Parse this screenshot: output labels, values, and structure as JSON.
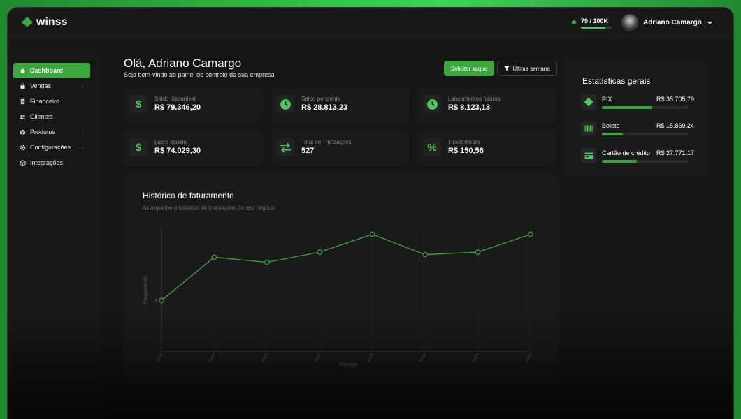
{
  "brand": {
    "name": "winss"
  },
  "credits": {
    "current": "79",
    "max": "100K",
    "label": "79  /  100K",
    "progress": 0.79
  },
  "user": {
    "name": "Adriano Camargo"
  },
  "sidebar": {
    "items": [
      {
        "label": "Dashboard",
        "icon": "home-icon",
        "active": true,
        "expandable": false
      },
      {
        "label": "Vendas",
        "icon": "bag-icon",
        "active": false,
        "expandable": true
      },
      {
        "label": "Financeiro",
        "icon": "document-icon",
        "active": false,
        "expandable": true
      },
      {
        "label": "Clientes",
        "icon": "users-icon",
        "active": false,
        "expandable": false
      },
      {
        "label": "Produtos",
        "icon": "box-icon",
        "active": false,
        "expandable": true
      },
      {
        "label": "Configurações",
        "icon": "gear-icon",
        "active": false,
        "expandable": true
      },
      {
        "label": "Integrações",
        "icon": "cube-icon",
        "active": false,
        "expandable": false
      }
    ]
  },
  "header": {
    "greeting": "Olá, Adriano Camargo",
    "subtitle": "Seja bem-vindo ao painel de controle da sua empresa",
    "withdraw_label": "Solicitar saque",
    "filter_label": "Última semana"
  },
  "cards": [
    {
      "label": "Saldo disponível",
      "value": "R$ 79.346,20",
      "icon": "dollar-icon"
    },
    {
      "label": "Saldo pendente",
      "value": "R$ 28.813,23",
      "icon": "clock-icon"
    },
    {
      "label": "Lançamentos futuros",
      "value": "R$ 8.123,13",
      "icon": "clock-icon"
    },
    {
      "label": "Lucro líquido",
      "value": "R$ 74.029,30",
      "icon": "dollar-icon"
    },
    {
      "label": "Total de Transações",
      "value": "527",
      "icon": "transfer-icon"
    },
    {
      "label": "Ticket médio",
      "value": "R$ 150,56",
      "icon": "percent-icon"
    }
  ],
  "stats": {
    "title": "Estatísticas gerais",
    "items": [
      {
        "name": "PIX",
        "amount": "R$ 35.705,79",
        "share": 0.58,
        "icon": "pix-icon"
      },
      {
        "name": "Boleto",
        "amount": "R$ 15.869,24",
        "share": 0.24,
        "icon": "barcode-icon"
      },
      {
        "name": "Cartão de crédito",
        "amount": "R$ 27.771,17",
        "share": 0.4,
        "icon": "credit-card-icon"
      }
    ]
  },
  "chart": {
    "title": "Histórico de faturamento",
    "subtitle": "Acompanhe o histórico de transações do seu negócio",
    "accent": "#3da63f"
  },
  "chart_data": {
    "type": "line",
    "title": "Histórico de faturamento",
    "xlabel": "Período",
    "ylabel": "Faturamento",
    "y_tick_label": "4",
    "categories": [
      "02/04",
      "03/04",
      "04/04",
      "05/04",
      "06/04",
      "07/04",
      "08/04",
      "09/04"
    ],
    "series": [
      {
        "values": [
          4.0,
          7.4,
          7.0,
          7.8,
          9.2,
          7.6,
          7.8,
          9.2
        ]
      }
    ],
    "ylim": [
      0,
      10
    ],
    "grid": true
  }
}
